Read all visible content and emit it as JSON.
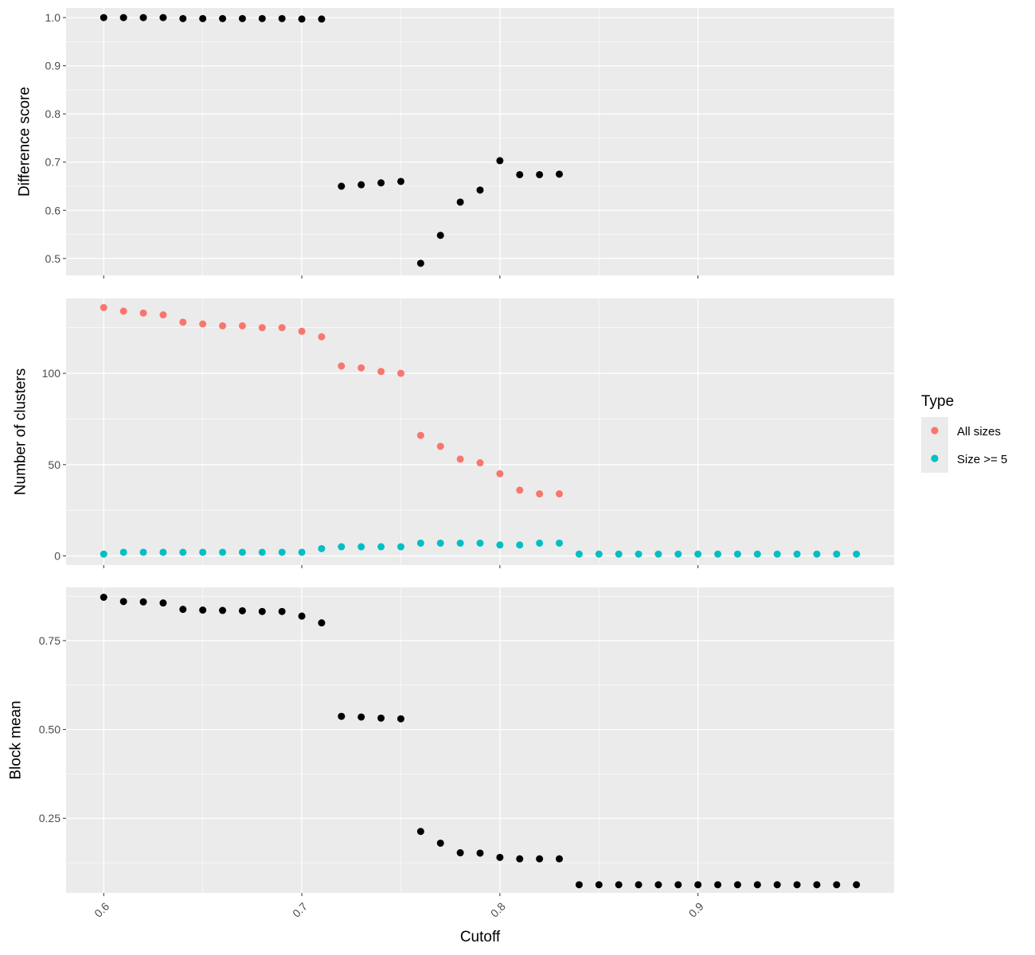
{
  "chart_data": {
    "type": "scatter",
    "facets": "stacked-vertical",
    "shared_x": true,
    "xlabel": "Cutoff",
    "x_ticks": [
      0.6,
      0.7,
      0.8,
      0.9
    ],
    "x_tick_labels": [
      "0.6",
      "0.7",
      "0.8",
      "0.9"
    ],
    "xlim": [
      0.581,
      0.999
    ],
    "grid": true,
    "legend": {
      "title": "Type",
      "placement": "right",
      "entries": [
        {
          "label": "All sizes",
          "color": "#F8766D"
        },
        {
          "label": "Size >= 5",
          "color": "#00BFC4"
        }
      ]
    },
    "panels": [
      {
        "ylabel": "Difference score",
        "ylim": [
          0.465,
          1.02
        ],
        "y_ticks": [
          0.5,
          0.6,
          0.7,
          0.8,
          0.9,
          1.0
        ],
        "y_tick_labels": [
          "0.5",
          "0.6",
          "0.7",
          "0.8",
          "0.9",
          "1.0"
        ],
        "series": [
          {
            "color": "#000000",
            "x": [
              0.6,
              0.61,
              0.62,
              0.63,
              0.64,
              0.65,
              0.66,
              0.67,
              0.68,
              0.69,
              0.7,
              0.71,
              0.72,
              0.73,
              0.74,
              0.75,
              0.76,
              0.77,
              0.78,
              0.79,
              0.8,
              0.81,
              0.82,
              0.83
            ],
            "y": [
              1.0,
              1.0,
              1.0,
              1.0,
              0.998,
              0.998,
              0.998,
              0.998,
              0.998,
              0.998,
              0.997,
              0.997,
              0.65,
              0.653,
              0.657,
              0.66,
              0.49,
              0.548,
              0.617,
              0.642,
              0.703,
              0.674,
              0.674,
              0.675
            ]
          }
        ]
      },
      {
        "ylabel": "Number of clusters",
        "ylim": [
          -5,
          141
        ],
        "y_ticks": [
          0,
          50,
          100
        ],
        "y_tick_labels": [
          "0",
          "50",
          "100"
        ],
        "series": [
          {
            "name": "All sizes",
            "color": "#F8766D",
            "x": [
              0.6,
              0.61,
              0.62,
              0.63,
              0.64,
              0.65,
              0.66,
              0.67,
              0.68,
              0.69,
              0.7,
              0.71,
              0.72,
              0.73,
              0.74,
              0.75,
              0.76,
              0.77,
              0.78,
              0.79,
              0.8,
              0.81,
              0.82,
              0.83
            ],
            "y": [
              136,
              134,
              133,
              132,
              128,
              127,
              126,
              126,
              125,
              125,
              123,
              120,
              104,
              103,
              101,
              100,
              66,
              60,
              53,
              51,
              45,
              36,
              34,
              34
            ]
          },
          {
            "name": "Size >= 5",
            "color": "#00BFC4",
            "x": [
              0.6,
              0.61,
              0.62,
              0.63,
              0.64,
              0.65,
              0.66,
              0.67,
              0.68,
              0.69,
              0.7,
              0.71,
              0.72,
              0.73,
              0.74,
              0.75,
              0.76,
              0.77,
              0.78,
              0.79,
              0.8,
              0.81,
              0.82,
              0.83,
              0.84,
              0.85,
              0.86,
              0.87,
              0.88,
              0.89,
              0.9,
              0.91,
              0.92,
              0.93,
              0.94,
              0.95,
              0.96,
              0.97,
              0.98
            ],
            "y": [
              1,
              2,
              2,
              2,
              2,
              2,
              2,
              2,
              2,
              2,
              2,
              4,
              5,
              5,
              5,
              5,
              7,
              7,
              7,
              7,
              6,
              6,
              7,
              7,
              1,
              1,
              1,
              1,
              1,
              1,
              1,
              1,
              1,
              1,
              1,
              1,
              1,
              1,
              1
            ]
          }
        ]
      },
      {
        "ylabel": "Block mean",
        "ylim": [
          0.04,
          0.9
        ],
        "y_ticks": [
          0.25,
          0.5,
          0.75
        ],
        "y_tick_labels": [
          "0.25",
          "0.50",
          "0.75"
        ],
        "series": [
          {
            "color": "#000000",
            "x": [
              0.6,
              0.61,
              0.62,
              0.63,
              0.64,
              0.65,
              0.66,
              0.67,
              0.68,
              0.69,
              0.7,
              0.71,
              0.72,
              0.73,
              0.74,
              0.75,
              0.76,
              0.77,
              0.78,
              0.79,
              0.8,
              0.81,
              0.82,
              0.83,
              0.84,
              0.85,
              0.86,
              0.87,
              0.88,
              0.89,
              0.9,
              0.91,
              0.92,
              0.93,
              0.94,
              0.95,
              0.96,
              0.97,
              0.98
            ],
            "y": [
              0.872,
              0.86,
              0.859,
              0.856,
              0.838,
              0.836,
              0.835,
              0.834,
              0.832,
              0.832,
              0.819,
              0.8,
              0.537,
              0.535,
              0.532,
              0.53,
              0.213,
              0.18,
              0.153,
              0.152,
              0.14,
              0.136,
              0.136,
              0.136,
              0.063,
              0.063,
              0.063,
              0.063,
              0.063,
              0.063,
              0.063,
              0.063,
              0.063,
              0.063,
              0.063,
              0.063,
              0.063,
              0.063,
              0.063
            ]
          }
        ]
      }
    ]
  }
}
